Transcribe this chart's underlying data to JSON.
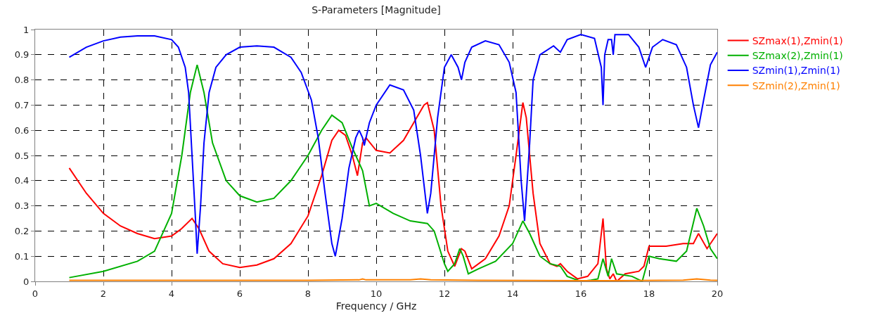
{
  "chart_data": {
    "type": "line",
    "title": "S-Parameters [Magnitude]",
    "xlabel": "Frequency / GHz",
    "xlim": [
      0,
      20
    ],
    "xticks": [
      0,
      2,
      4,
      6,
      8,
      10,
      12,
      14,
      16,
      18,
      20
    ],
    "ylim": [
      0,
      1
    ],
    "yticks": [
      0,
      0.1,
      0.2,
      0.3,
      0.4,
      0.5,
      0.6,
      0.7,
      0.8,
      0.9,
      1
    ],
    "grid": true,
    "legend": "top right",
    "marker": "none",
    "line_style": "solid",
    "series": [
      {
        "name": "SZmax(1),Zmin(1)",
        "color": "#ff0000",
        "x": [
          1,
          1.5,
          2,
          2.5,
          3,
          3.5,
          4,
          4.3,
          4.6,
          4.8,
          5.1,
          5.5,
          6,
          6.5,
          7,
          7.5,
          8,
          8.4,
          8.7,
          8.9,
          9.1,
          9.3,
          9.45,
          9.6,
          9.7,
          10,
          10.4,
          10.8,
          11.1,
          11.4,
          11.5,
          11.7,
          11.9,
          12.1,
          12.3,
          12.5,
          12.6,
          12.8,
          13.2,
          13.6,
          13.9,
          14.1,
          14.3,
          14.4,
          14.6,
          14.8,
          15.1,
          15.3,
          15.4,
          15.6,
          15.9,
          16.2,
          16.5,
          16.65,
          16.75,
          16.85,
          16.95,
          17.05,
          17.3,
          17.7,
          17.85,
          18,
          18.5,
          19,
          19.3,
          19.45,
          19.7,
          20
        ],
        "values": [
          0.45,
          0.35,
          0.27,
          0.22,
          0.19,
          0.17,
          0.18,
          0.21,
          0.25,
          0.21,
          0.12,
          0.07,
          0.055,
          0.065,
          0.09,
          0.15,
          0.26,
          0.42,
          0.56,
          0.6,
          0.58,
          0.5,
          0.42,
          0.55,
          0.57,
          0.52,
          0.51,
          0.56,
          0.63,
          0.7,
          0.71,
          0.6,
          0.3,
          0.12,
          0.06,
          0.13,
          0.12,
          0.05,
          0.09,
          0.18,
          0.3,
          0.5,
          0.71,
          0.65,
          0.35,
          0.15,
          0.07,
          0.06,
          0.07,
          0.04,
          0.01,
          0.02,
          0.07,
          0.25,
          0.05,
          0.01,
          0.03,
          0.0,
          0.03,
          0.04,
          0.06,
          0.14,
          0.14,
          0.15,
          0.15,
          0.19,
          0.13,
          0.19
        ]
      },
      {
        "name": "SZmax(2),Zmin(1)",
        "color": "#00b000",
        "x": [
          1,
          2,
          3,
          3.5,
          4,
          4.3,
          4.55,
          4.75,
          4.95,
          5.2,
          5.6,
          6,
          6.5,
          7,
          7.5,
          8,
          8.4,
          8.7,
          9,
          9.3,
          9.6,
          9.8,
          10,
          10.5,
          11,
          11.5,
          11.7,
          12,
          12.1,
          12.3,
          12.45,
          12.55,
          12.7,
          13,
          13.5,
          14,
          14.3,
          14.5,
          14.8,
          15.1,
          15.4,
          15.6,
          16,
          16.3,
          16.5,
          16.65,
          16.8,
          16.9,
          17.05,
          17.5,
          17.8,
          18,
          18.3,
          18.8,
          19.1,
          19.4,
          19.6,
          19.8,
          20
        ],
        "values": [
          0.015,
          0.04,
          0.08,
          0.12,
          0.27,
          0.5,
          0.75,
          0.86,
          0.75,
          0.55,
          0.4,
          0.34,
          0.315,
          0.33,
          0.4,
          0.5,
          0.6,
          0.66,
          0.63,
          0.53,
          0.44,
          0.3,
          0.31,
          0.27,
          0.24,
          0.23,
          0.2,
          0.07,
          0.04,
          0.07,
          0.13,
          0.1,
          0.03,
          0.05,
          0.08,
          0.15,
          0.24,
          0.19,
          0.1,
          0.07,
          0.06,
          0.02,
          0.0,
          0.005,
          0.01,
          0.09,
          0.02,
          0.09,
          0.03,
          0.02,
          0.0,
          0.1,
          0.09,
          0.08,
          0.12,
          0.29,
          0.22,
          0.13,
          0.09
        ]
      },
      {
        "name": "SZmin(1),Zmin(1)",
        "color": "#0000ff",
        "x": [
          1,
          1.5,
          2,
          2.5,
          3,
          3.5,
          4,
          4.2,
          4.4,
          4.5,
          4.6,
          4.7,
          4.75,
          4.85,
          4.95,
          5.1,
          5.3,
          5.6,
          6,
          6.5,
          7,
          7.5,
          7.8,
          8.1,
          8.3,
          8.5,
          8.7,
          8.8,
          9,
          9.2,
          9.4,
          9.5,
          9.6,
          9.65,
          9.8,
          10,
          10.4,
          10.8,
          11.1,
          11.3,
          11.5,
          11.6,
          11.8,
          12,
          12.2,
          12.4,
          12.5,
          12.6,
          12.8,
          13.2,
          13.6,
          13.9,
          14.1,
          14.25,
          14.35,
          14.5,
          14.6,
          14.8,
          15.2,
          15.4,
          15.6,
          16,
          16.4,
          16.6,
          16.65,
          16.7,
          16.8,
          16.9,
          16.95,
          17,
          17.4,
          17.7,
          17.9,
          18.1,
          18.4,
          18.8,
          19.1,
          19.3,
          19.45,
          19.6,
          19.8,
          20
        ],
        "values": [
          0.89,
          0.93,
          0.955,
          0.97,
          0.975,
          0.975,
          0.96,
          0.93,
          0.85,
          0.75,
          0.5,
          0.25,
          0.11,
          0.3,
          0.55,
          0.75,
          0.85,
          0.9,
          0.93,
          0.935,
          0.93,
          0.89,
          0.83,
          0.72,
          0.57,
          0.35,
          0.15,
          0.1,
          0.25,
          0.45,
          0.57,
          0.6,
          0.57,
          0.54,
          0.63,
          0.7,
          0.78,
          0.76,
          0.68,
          0.5,
          0.27,
          0.35,
          0.65,
          0.85,
          0.9,
          0.85,
          0.8,
          0.87,
          0.93,
          0.955,
          0.94,
          0.87,
          0.75,
          0.4,
          0.24,
          0.55,
          0.8,
          0.9,
          0.935,
          0.91,
          0.96,
          0.98,
          0.965,
          0.85,
          0.7,
          0.9,
          0.96,
          0.96,
          0.9,
          0.98,
          0.98,
          0.93,
          0.85,
          0.93,
          0.96,
          0.94,
          0.85,
          0.7,
          0.61,
          0.72,
          0.86,
          0.91
        ]
      },
      {
        "name": "SZmin(2),Zmin(1)",
        "color": "#ff8000",
        "x": [
          1,
          4,
          8,
          9.5,
          9.6,
          9.7,
          11,
          11.3,
          11.6,
          13,
          16,
          17,
          19,
          19.4,
          19.8,
          20
        ],
        "values": [
          0.004,
          0.004,
          0.004,
          0.006,
          0.01,
          0.006,
          0.006,
          0.01,
          0.006,
          0.004,
          0.003,
          0.003,
          0.005,
          0.01,
          0.005,
          0.004
        ]
      }
    ]
  }
}
